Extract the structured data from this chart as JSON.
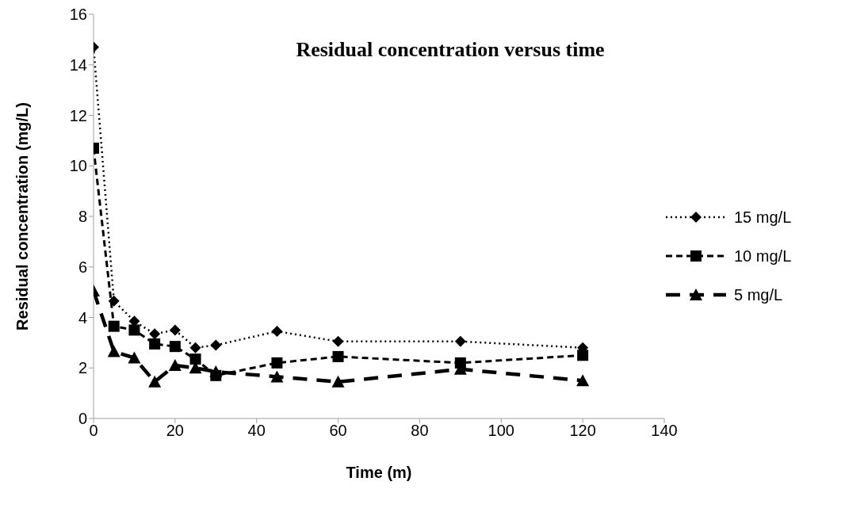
{
  "chart_data": {
    "type": "line",
    "title": "Residual concentration versus time",
    "xlabel": "Time (m)",
    "ylabel": "Residual concentration (mg/L)",
    "x": [
      0,
      5,
      10,
      15,
      20,
      25,
      30,
      45,
      60,
      90,
      120
    ],
    "xlim": [
      0,
      140
    ],
    "xticks": [
      0,
      20,
      40,
      60,
      80,
      100,
      120,
      140
    ],
    "ylim": [
      0,
      16
    ],
    "yticks": [
      0,
      2,
      4,
      6,
      8,
      10,
      12,
      14,
      16
    ],
    "grid": false,
    "legend": "right",
    "series": [
      {
        "name": "15 mg/L",
        "color": "#000000",
        "marker": "diamond",
        "line_style": "dotted",
        "values": [
          14.7,
          4.65,
          3.85,
          3.35,
          3.5,
          2.8,
          2.9,
          3.45,
          3.05,
          3.05,
          2.8
        ]
      },
      {
        "name": "10 mg/L",
        "color": "#000000",
        "marker": "square",
        "line_style": "dashed",
        "values": [
          10.7,
          3.65,
          3.5,
          2.95,
          2.85,
          2.35,
          1.7,
          2.2,
          2.45,
          2.2,
          2.5
        ]
      },
      {
        "name": "5 mg/L",
        "color": "#000000",
        "marker": "triangle",
        "line_style": "long dashed",
        "values": [
          5.05,
          2.65,
          2.4,
          1.45,
          2.1,
          2.0,
          1.85,
          1.65,
          1.45,
          1.95,
          1.5
        ]
      }
    ]
  }
}
